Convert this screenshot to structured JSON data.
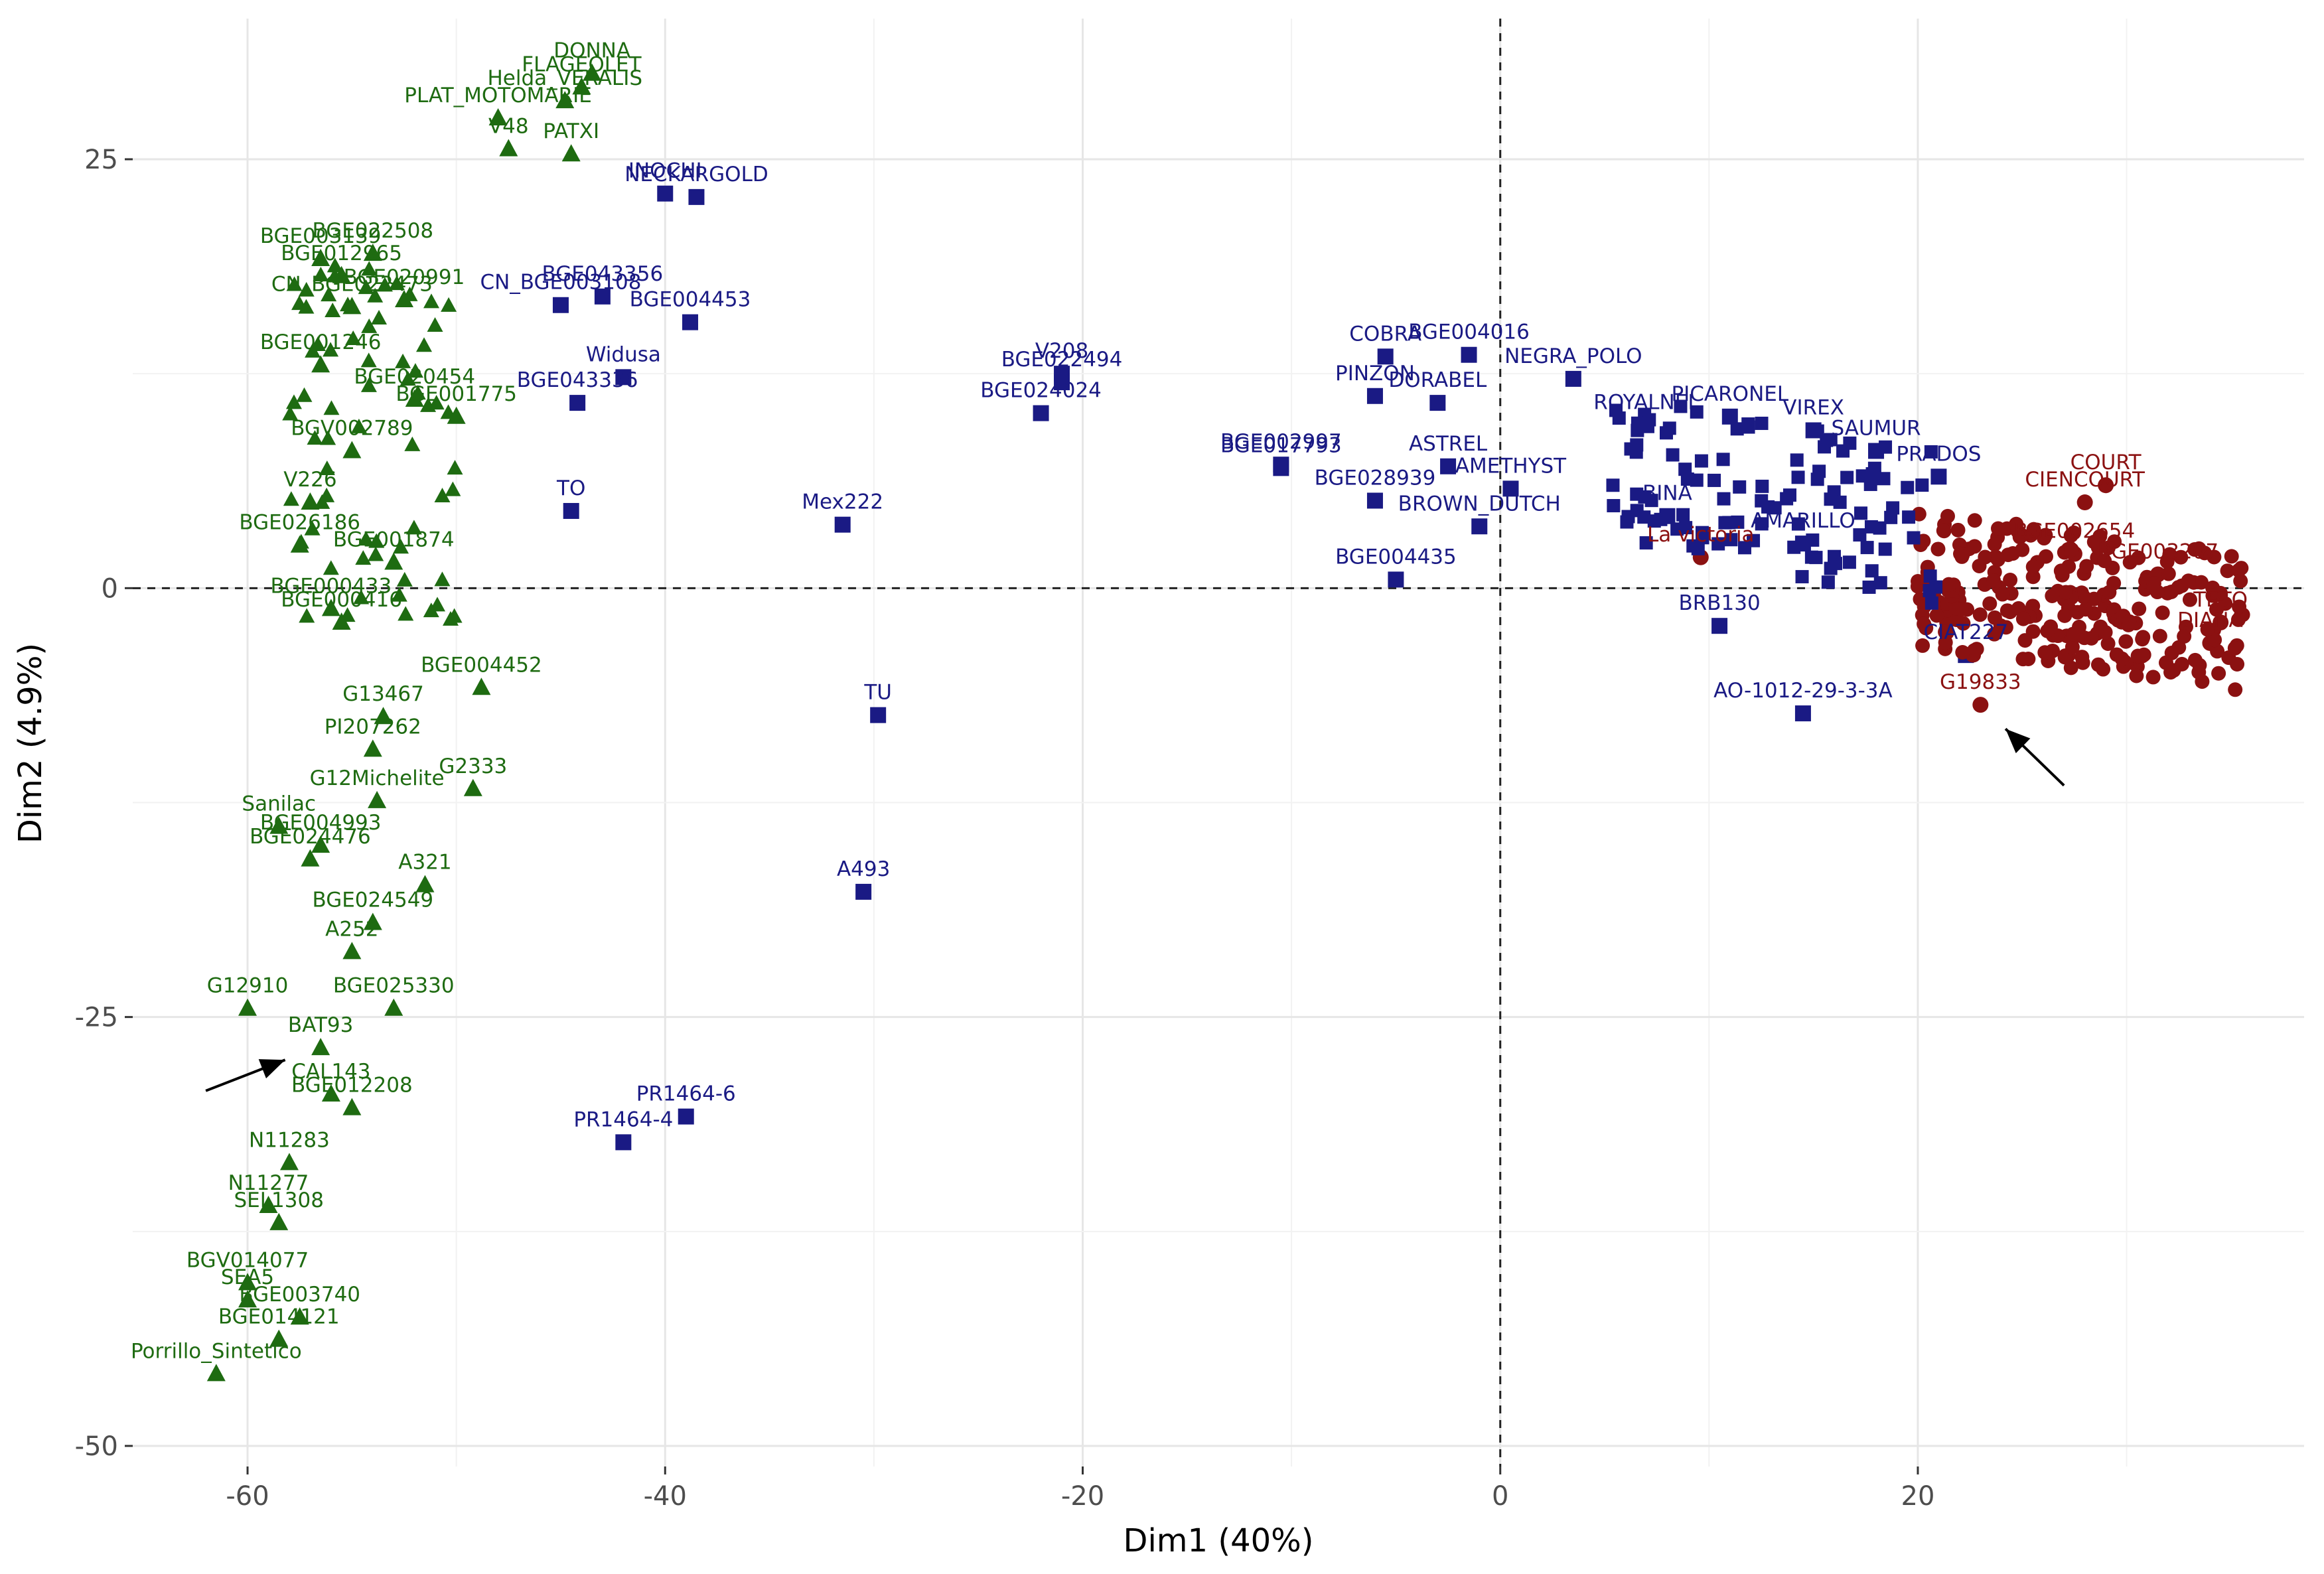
{
  "chart_data": {
    "type": "scatter",
    "title": "",
    "xlabel": "Dim1 (40%)",
    "ylabel": "Dim2 (4.9%)",
    "xlim": [
      -65.5,
      38.5
    ],
    "ylim": [
      -51.2,
      33.2
    ],
    "x_ticks": [
      -60,
      -40,
      -20,
      0,
      20
    ],
    "y_ticks": [
      -50,
      -25,
      0,
      25
    ],
    "grid": true,
    "reference_lines": {
      "x": 0,
      "y": 0
    },
    "group_colors": {
      "green": "#1e6b11",
      "blue": "#1a1a84",
      "red": "#8b1111"
    },
    "points": [
      {
        "label": "DONNA",
        "x": -43.5,
        "y": 30.0,
        "group": "green"
      },
      {
        "label": "FLAGEOLET",
        "x": -44.0,
        "y": 29.2,
        "group": "green"
      },
      {
        "label": "Helda_VERALIS",
        "x": -44.8,
        "y": 28.4,
        "group": "green"
      },
      {
        "label": "PLAT_MOTOMARIE",
        "x": -48.0,
        "y": 27.4,
        "group": "green"
      },
      {
        "label": "V48",
        "x": -47.5,
        "y": 25.6,
        "group": "green"
      },
      {
        "label": "PATXI",
        "x": -44.5,
        "y": 25.3,
        "group": "green"
      },
      {
        "label": "INOCHI",
        "x": -40.0,
        "y": 23.0,
        "group": "blue"
      },
      {
        "label": "NECKARGOLD",
        "x": -38.5,
        "y": 22.8,
        "group": "blue"
      },
      {
        "label": "BGE003139",
        "x": -56.5,
        "y": 19.2,
        "group": "green"
      },
      {
        "label": "BGE022508",
        "x": -54.0,
        "y": 19.5,
        "group": "green"
      },
      {
        "label": "BGE012965",
        "x": -55.5,
        "y": 18.2,
        "group": "green"
      },
      {
        "label": "BGE020991",
        "x": -52.5,
        "y": 16.8,
        "group": "green"
      },
      {
        "label": "CN_BGE022473",
        "x": -55.0,
        "y": 16.4,
        "group": "green"
      },
      {
        "label": "BGE043356",
        "x": -43.0,
        "y": 17.0,
        "group": "blue"
      },
      {
        "label": "CN_BGE003108",
        "x": -45.0,
        "y": 16.5,
        "group": "blue"
      },
      {
        "label": "BGE004453",
        "x": -38.8,
        "y": 15.5,
        "group": "blue"
      },
      {
        "label": "BGE001246",
        "x": -56.5,
        "y": 13.0,
        "group": "green"
      },
      {
        "label": "BGE020454",
        "x": -52.0,
        "y": 11.0,
        "group": "green"
      },
      {
        "label": "BGE001775",
        "x": -50.0,
        "y": 10.0,
        "group": "green"
      },
      {
        "label": "BGV002789",
        "x": -55.0,
        "y": 8.0,
        "group": "green"
      },
      {
        "label": "V226",
        "x": -57.0,
        "y": 5.0,
        "group": "green"
      },
      {
        "label": "BGE026186",
        "x": -57.5,
        "y": 2.5,
        "group": "green"
      },
      {
        "label": "BGE001874",
        "x": -53.0,
        "y": 1.5,
        "group": "green"
      },
      {
        "label": "BGE000433",
        "x": -56.0,
        "y": -1.2,
        "group": "green"
      },
      {
        "label": "BGE000416",
        "x": -55.5,
        "y": -2.0,
        "group": "green"
      },
      {
        "label": "Widusa",
        "x": -42.0,
        "y": 12.3,
        "group": "blue"
      },
      {
        "label": "BGE043336",
        "x": -44.2,
        "y": 10.8,
        "group": "blue"
      },
      {
        "label": "TO",
        "x": -44.5,
        "y": 4.5,
        "group": "blue"
      },
      {
        "label": "Mex222",
        "x": -31.5,
        "y": 3.7,
        "group": "blue"
      },
      {
        "label": "V208",
        "x": -21.0,
        "y": 12.5,
        "group": "blue"
      },
      {
        "label": "BGE022494",
        "x": -21.0,
        "y": 12.0,
        "group": "blue"
      },
      {
        "label": "BGE024024",
        "x": -22.0,
        "y": 10.2,
        "group": "blue"
      },
      {
        "label": "BGE002997",
        "x": -10.5,
        "y": 7.2,
        "group": "blue"
      },
      {
        "label": "BGE017793",
        "x": -10.5,
        "y": 7.0,
        "group": "blue"
      },
      {
        "label": "BGE028939",
        "x": -6.0,
        "y": 5.1,
        "group": "blue"
      },
      {
        "label": "COBRA",
        "x": -5.5,
        "y": 13.5,
        "group": "blue"
      },
      {
        "label": "BGE004016",
        "x": -1.5,
        "y": 13.6,
        "group": "blue"
      },
      {
        "label": "PINZON",
        "x": -6.0,
        "y": 11.2,
        "group": "blue"
      },
      {
        "label": "NEGRA_POLO",
        "x": 3.5,
        "y": 12.2,
        "group": "blue"
      },
      {
        "label": "DORABEL",
        "x": -3.0,
        "y": 10.8,
        "group": "blue"
      },
      {
        "label": "ASTREL",
        "x": -2.5,
        "y": 7.1,
        "group": "blue"
      },
      {
        "label": "BROWN_DUTCH",
        "x": -1.0,
        "y": 3.6,
        "group": "blue"
      },
      {
        "label": "AMETHYST",
        "x": 0.5,
        "y": 5.8,
        "group": "blue"
      },
      {
        "label": "BGE004435",
        "x": -5.0,
        "y": 0.5,
        "group": "blue"
      },
      {
        "label": "ROYALNEL",
        "x": 7.0,
        "y": 9.5,
        "group": "blue"
      },
      {
        "label": "PICARONEL",
        "x": 11.0,
        "y": 10.0,
        "group": "blue"
      },
      {
        "label": "VIREX",
        "x": 15.0,
        "y": 9.2,
        "group": "blue"
      },
      {
        "label": "SAUMUR",
        "x": 18.0,
        "y": 8.0,
        "group": "blue"
      },
      {
        "label": "PRADOS",
        "x": 21.0,
        "y": 6.5,
        "group": "blue"
      },
      {
        "label": "BINA",
        "x": 8.0,
        "y": 4.2,
        "group": "blue"
      },
      {
        "label": "AMARILLO",
        "x": 14.5,
        "y": 2.6,
        "group": "blue"
      },
      {
        "label": "BRB130",
        "x": 10.5,
        "y": -2.2,
        "group": "blue"
      },
      {
        "label": "AO-1012-29-3-3A",
        "x": 14.5,
        "y": -7.3,
        "group": "blue"
      },
      {
        "label": "CIAT227",
        "x": 22.3,
        "y": -3.9,
        "group": "blue"
      },
      {
        "label": "La victoria",
        "x": 9.6,
        "y": 1.8,
        "group": "red"
      },
      {
        "label": "G19833",
        "x": 23.0,
        "y": -6.8,
        "group": "red"
      },
      {
        "label": "COURT",
        "x": 29.0,
        "y": 6.0,
        "group": "red"
      },
      {
        "label": "CIENCOURT",
        "x": 28.0,
        "y": 5.0,
        "group": "red"
      },
      {
        "label": "BGE002654",
        "x": 27.5,
        "y": 2.0,
        "group": "red"
      },
      {
        "label": "BGE003207",
        "x": 31.5,
        "y": 0.8,
        "group": "red"
      },
      {
        "label": "TETO",
        "x": 34.5,
        "y": -2.0,
        "group": "red"
      },
      {
        "label": "DIANA",
        "x": 34.0,
        "y": -3.2,
        "group": "red"
      },
      {
        "label": "G13467",
        "x": -53.5,
        "y": -7.5,
        "group": "green"
      },
      {
        "label": "BGE004452",
        "x": -48.8,
        "y": -5.8,
        "group": "green"
      },
      {
        "label": "PI207262",
        "x": -54.0,
        "y": -9.4,
        "group": "green"
      },
      {
        "label": "G2333",
        "x": -49.2,
        "y": -11.7,
        "group": "green"
      },
      {
        "label": "G12Michelite",
        "x": -53.8,
        "y": -12.4,
        "group": "green"
      },
      {
        "label": "Sanilac",
        "x": -58.5,
        "y": -13.9,
        "group": "green"
      },
      {
        "label": "BGE004993",
        "x": -56.5,
        "y": -15.0,
        "group": "green"
      },
      {
        "label": "BGE024476",
        "x": -57.0,
        "y": -15.8,
        "group": "green"
      },
      {
        "label": "A321",
        "x": -51.5,
        "y": -17.3,
        "group": "green"
      },
      {
        "label": "BGE024549",
        "x": -54.0,
        "y": -19.5,
        "group": "green"
      },
      {
        "label": "A252",
        "x": -55.0,
        "y": -21.2,
        "group": "green"
      },
      {
        "label": "G12910",
        "x": -60.0,
        "y": -24.5,
        "group": "green"
      },
      {
        "label": "BGE025330",
        "x": -53.0,
        "y": -24.5,
        "group": "green"
      },
      {
        "label": "BAT93",
        "x": -56.5,
        "y": -26.8,
        "group": "green"
      },
      {
        "label": "CAL143",
        "x": -56.0,
        "y": -29.5,
        "group": "green"
      },
      {
        "label": "BGE012208",
        "x": -55.0,
        "y": -30.3,
        "group": "green"
      },
      {
        "label": "N11283",
        "x": -58.0,
        "y": -33.5,
        "group": "green"
      },
      {
        "label": "SEL1308",
        "x": -58.5,
        "y": -37.0,
        "group": "green"
      },
      {
        "label": "N11277",
        "x": -59.0,
        "y": -36.0,
        "group": "green"
      },
      {
        "label": "BGV014077",
        "x": -60.0,
        "y": -40.5,
        "group": "green"
      },
      {
        "label": "SEA5",
        "x": -60.0,
        "y": -41.5,
        "group": "green"
      },
      {
        "label": "BGE003740",
        "x": -57.5,
        "y": -42.5,
        "group": "green"
      },
      {
        "label": "BGE014121",
        "x": -58.5,
        "y": -43.8,
        "group": "green"
      },
      {
        "label": "Porrillo_Sintetico",
        "x": -61.5,
        "y": -45.8,
        "group": "green"
      },
      {
        "label": "TU",
        "x": -29.8,
        "y": -7.4,
        "group": "blue"
      },
      {
        "label": "A493",
        "x": -30.5,
        "y": -17.7,
        "group": "blue"
      },
      {
        "label": "PR1464-6",
        "x": -39.0,
        "y": -30.8,
        "group": "blue"
      },
      {
        "label": "PR1464-4",
        "x": -42.0,
        "y": -32.3,
        "group": "blue"
      }
    ],
    "arrows": [
      {
        "from": [
          -62.0,
          -29.3
        ],
        "to": [
          -58.2,
          -27.5
        ]
      },
      {
        "from": [
          27.0,
          -11.5
        ],
        "to": [
          24.2,
          -8.2
        ]
      }
    ]
  }
}
